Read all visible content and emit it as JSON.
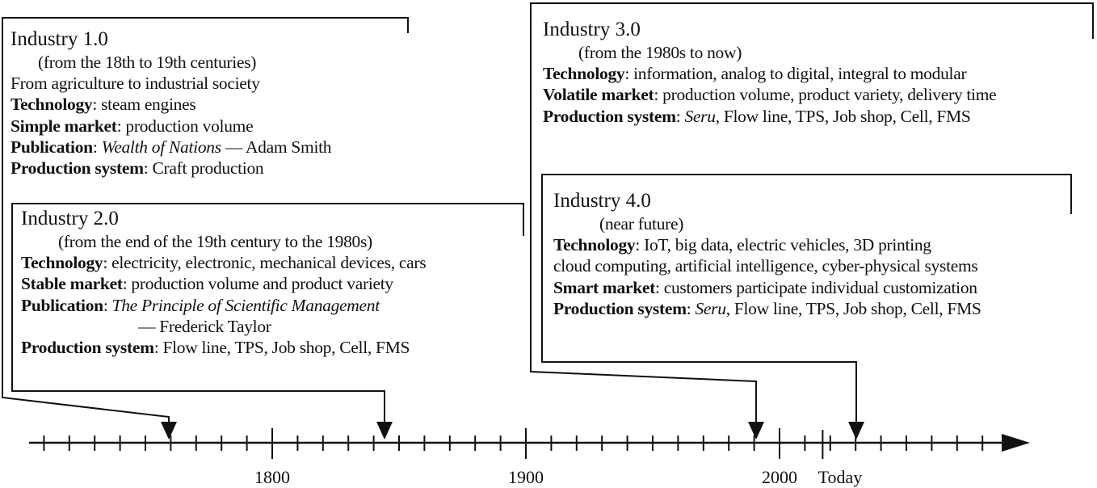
{
  "industry1": {
    "title": "Industry 1.0",
    "period": "(from the 18th to 19th centuries)",
    "line": "From agriculture to industrial society",
    "technology_label": "Technology",
    "technology": ": steam engines",
    "market_label": "Simple market",
    "market": ": production volume",
    "publication_label": "Publication",
    "publication_sep": ": ",
    "publication_title": "Wealth of Nations",
    "publication_author": " — Adam Smith",
    "production_label": "Production system",
    "production": ": Craft production"
  },
  "industry2": {
    "title": "Industry 2.0",
    "period": "(from the end of the 19th century to the 1980s)",
    "technology_label": "Technology",
    "technology": ": electricity, electronic, mechanical devices, cars",
    "market_label": "Stable market",
    "market": ": production volume and product variety",
    "publication_label": "Publication",
    "publication_sep": ": ",
    "publication_title": "The Principle of Scientific Management",
    "publication_author": "— Frederick Taylor",
    "production_label": "Production system",
    "production": ": Flow line, TPS, Job shop, Cell, FMS"
  },
  "industry3": {
    "title": "Industry 3.0",
    "period": "(from the 1980s to now)",
    "technology_label": "Technology",
    "technology": ": information, analog to digital, integral to modular",
    "market_label": "Volatile market",
    "market": ": production volume, product variety, delivery time",
    "production_label": "Production system",
    "production_sep": ": ",
    "production_seru": "Seru",
    "production": ", Flow line, TPS, Job shop, Cell, FMS"
  },
  "industry4": {
    "title": "Industry 4.0",
    "period": "(near future)",
    "technology_label": "Technology",
    "technology": ": IoT, big data, electric vehicles, 3D printing",
    "technology_cont": "cloud computing, artificial intelligence, cyber-physical systems",
    "market_label": "Smart market",
    "market": ": customers participate individual customization",
    "production_label": "Production system",
    "production_sep": ": ",
    "production_seru": "Seru",
    "production": ", Flow line, TPS, Job shop, Cell, FMS"
  },
  "timeline": {
    "labels": [
      "1800",
      "1900",
      "2000",
      "Today"
    ],
    "range": [
      1710,
      2090
    ],
    "major_years": [
      1800,
      1900,
      2000
    ],
    "today_year": 2017,
    "arrow_years": [
      1765,
      1845,
      1990,
      2012
    ]
  }
}
